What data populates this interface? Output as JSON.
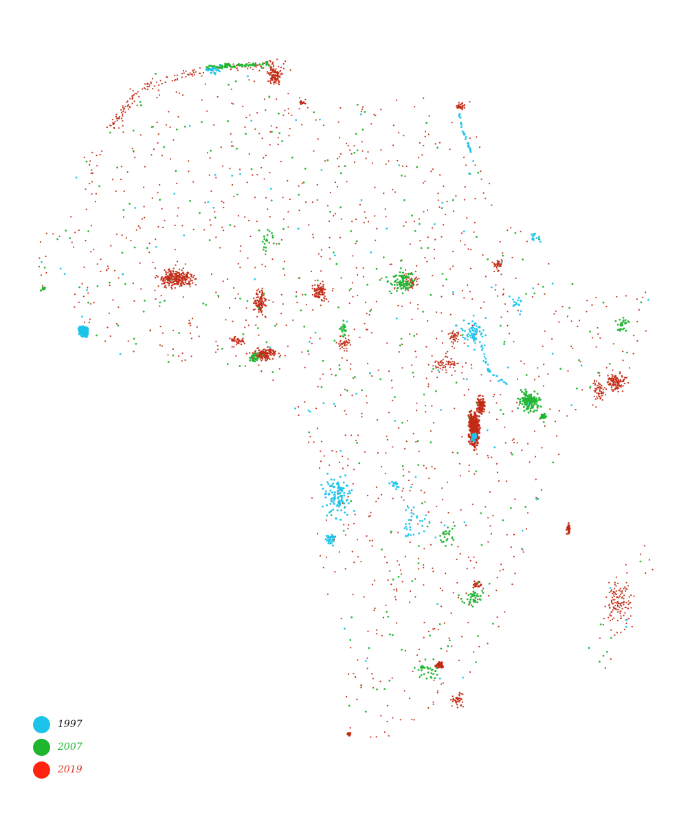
{
  "map": {
    "region": "Africa",
    "background": "#ffffff",
    "series": [
      {
        "key": "y1997",
        "label": "1997",
        "color": "#1cc4ea",
        "label_color": "#111111"
      },
      {
        "key": "y2007",
        "label": "2007",
        "color": "#1fb52f",
        "label_color": "#1fb52f"
      },
      {
        "key": "y2019",
        "label": "2019",
        "color": "#ff2410",
        "label_color": "#e03025",
        "dot_color": "#c22a14"
      }
    ]
  },
  "legend": {
    "items": [
      {
        "label": "1997",
        "color": "#1cc4ea",
        "text_color": "#111111"
      },
      {
        "label": "2007",
        "color": "#1fb52f",
        "text_color": "#1fb52f"
      },
      {
        "label": "2019",
        "color": "#ff2410",
        "text_color": "#e03025"
      }
    ]
  }
}
